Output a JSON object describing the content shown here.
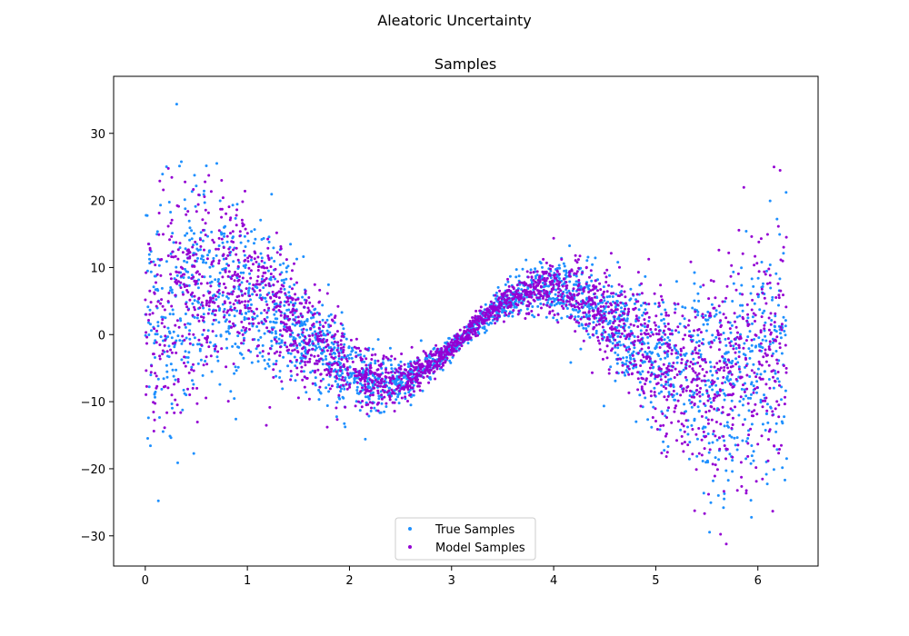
{
  "figure": {
    "suptitle": "Aleatoric Uncertainty"
  },
  "chart_data": {
    "type": "scatter",
    "title": "Samples",
    "xlabel": "",
    "ylabel": "",
    "xlim": [
      -0.31,
      6.59
    ],
    "ylim": [
      -34.5,
      38.5
    ],
    "xticks": [
      0,
      1,
      2,
      3,
      4,
      5,
      6
    ],
    "yticks": [
      -30,
      -20,
      -10,
      0,
      10,
      20,
      30
    ],
    "xtick_labels": [
      "0",
      "1",
      "2",
      "3",
      "4",
      "5",
      "6"
    ],
    "ytick_labels": [
      "−30",
      "−20",
      "−10",
      "0",
      "10",
      "20",
      "30"
    ],
    "grid": false,
    "legend_position": "lower center",
    "x_range": [
      0,
      6.283
    ],
    "points_per_series": 2500,
    "trend": "y ≈ 7·sin(2x); noise spread widest near x=0 and x=2π, narrowest near x=π",
    "series": [
      {
        "name": "True Samples",
        "color": "#1e90ff"
      },
      {
        "name": "Model Samples",
        "color": "#9400d3"
      }
    ]
  }
}
